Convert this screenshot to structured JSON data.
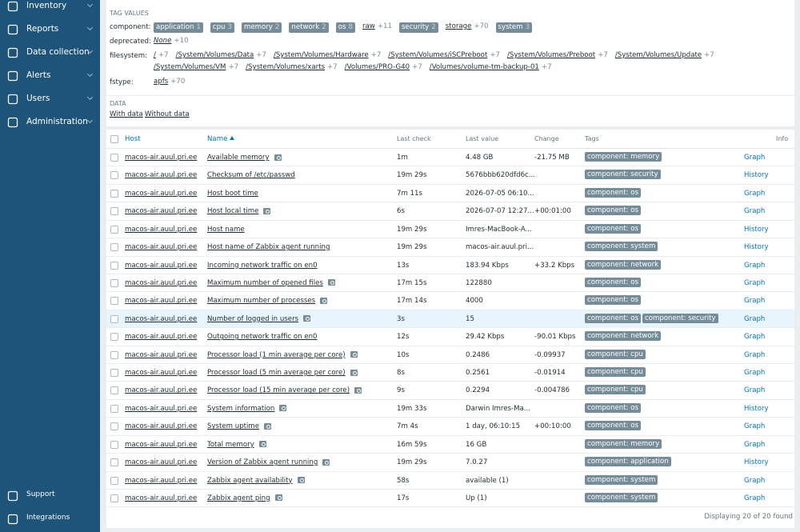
{
  "sidebar": {
    "menu": [
      "Inventory",
      "Reports",
      "Data collection",
      "Alerts",
      "Users",
      "Administration"
    ],
    "footer": [
      "Support",
      "Integrations"
    ]
  },
  "filter": {
    "tag_values_title": "TAG VALUES",
    "tags": [
      {
        "name": "component:",
        "values": [
          {
            "label": "application",
            "count": "1",
            "selected": true
          },
          {
            "label": "cpu",
            "count": "3",
            "selected": true
          },
          {
            "label": "memory",
            "count": "2",
            "selected": true
          },
          {
            "label": "network",
            "count": "2",
            "selected": true
          },
          {
            "label": "os",
            "count": "8",
            "selected": true
          },
          {
            "label": "raw",
            "count": "+11",
            "selected": false
          },
          {
            "label": "security",
            "count": "2",
            "selected": true
          },
          {
            "label": "storage",
            "count": "+70",
            "selected": false
          },
          {
            "label": "system",
            "count": "3",
            "selected": true
          }
        ]
      },
      {
        "name": "deprecated:",
        "values": [
          {
            "label": "None",
            "count": "+10",
            "selected": false,
            "italic": true
          }
        ]
      },
      {
        "name": "filesystem:",
        "values": [
          {
            "label": "/",
            "count": "+7",
            "selected": false
          },
          {
            "label": "/System/Volumes/Data",
            "count": "+7",
            "selected": false
          },
          {
            "label": "/System/Volumes/Hardware",
            "count": "+7",
            "selected": false
          },
          {
            "label": "/System/Volumes/iSCPreboot",
            "count": "+7",
            "selected": false
          },
          {
            "label": "/System/Volumes/Preboot",
            "count": "+7",
            "selected": false
          },
          {
            "label": "/System/Volumes/Update",
            "count": "+7",
            "selected": false
          },
          {
            "label": "/System/Volumes/VM",
            "count": "+7",
            "selected": false
          },
          {
            "label": "/System/Volumes/xarts",
            "count": "+7",
            "selected": false
          },
          {
            "label": "/Volumes/PRO-G40",
            "count": "+7",
            "selected": false
          },
          {
            "label": "/Volumes/volume-tm-backup-01",
            "count": "+7",
            "selected": false
          }
        ]
      },
      {
        "name": "fstype:",
        "values": [
          {
            "label": "apfs",
            "count": "+70",
            "selected": false
          }
        ]
      }
    ],
    "data_title": "DATA",
    "data_options": [
      "With data",
      "Without data"
    ]
  },
  "table": {
    "headers": [
      "Host",
      "Name",
      "Last check",
      "Last value",
      "Change",
      "Tags",
      "Info"
    ],
    "hover_row": 9,
    "rows": [
      {
        "host": "macos-air.auul.pri.ee",
        "name": "Available memory",
        "help": true,
        "last_check": "1m",
        "last_value": "4.48 GB",
        "change": "-21.75 MB",
        "tags": [
          "component: memory"
        ],
        "action": "Graph"
      },
      {
        "host": "macos-air.auul.pri.ee",
        "name": "Checksum of /etc/passwd",
        "help": false,
        "last_check": "19m 29s",
        "last_value": "5676bbb620dfd6c...",
        "tags": [
          "component: security"
        ],
        "action": "History"
      },
      {
        "host": "macos-air.auul.pri.ee",
        "name": "Host boot time",
        "help": false,
        "last_check": "7m 11s",
        "last_value": "2026-07-05 06:10...",
        "tags": [
          "component: os"
        ],
        "action": "Graph"
      },
      {
        "host": "macos-air.auul.pri.ee",
        "name": "Host local time",
        "help": true,
        "last_check": "6s",
        "last_value": "2026-07-07 12:27...",
        "change": "+00:01:00",
        "tags": [
          "component: os"
        ],
        "action": "Graph"
      },
      {
        "host": "macos-air.auul.pri.ee",
        "name": "Host name",
        "help": false,
        "last_check": "19m 29s",
        "last_value": "Imres-MacBook-A...",
        "tags": [
          "component: os"
        ],
        "action": "History"
      },
      {
        "host": "macos-air.auul.pri.ee",
        "name": "Host name of Zabbix agent running",
        "help": false,
        "last_check": "19m 29s",
        "last_value": "macos-air.auul.pri...",
        "tags": [
          "component: system"
        ],
        "action": "History"
      },
      {
        "host": "macos-air.auul.pri.ee",
        "name": "Incoming network traffic on en0",
        "help": false,
        "last_check": "13s",
        "last_value": "183.94 Kbps",
        "change": "+33.2 Kbps",
        "tags": [
          "component: network"
        ],
        "action": "Graph"
      },
      {
        "host": "macos-air.auul.pri.ee",
        "name": "Maximum number of opened files",
        "help": true,
        "last_check": "17m 15s",
        "last_value": "122880",
        "tags": [
          "component: os"
        ],
        "action": "Graph"
      },
      {
        "host": "macos-air.auul.pri.ee",
        "name": "Maximum number of processes",
        "help": true,
        "last_check": "17m 14s",
        "last_value": "4000",
        "tags": [
          "component: os"
        ],
        "action": "Graph"
      },
      {
        "host": "macos-air.auul.pri.ee",
        "name": "Number of logged in users",
        "help": true,
        "last_check": "3s",
        "last_value": "15",
        "tags": [
          "component: os",
          "component: security"
        ],
        "action": "Graph"
      },
      {
        "host": "macos-air.auul.pri.ee",
        "name": "Outgoing network traffic on en0",
        "help": false,
        "last_check": "12s",
        "last_value": "29.42 Kbps",
        "change": "-90.01 Kbps",
        "tags": [
          "component: network"
        ],
        "action": "Graph"
      },
      {
        "host": "macos-air.auul.pri.ee",
        "name": "Processor load (1 min average per core)",
        "help": true,
        "last_check": "10s",
        "last_value": "0.2486",
        "change": "-0.09937",
        "tags": [
          "component: cpu"
        ],
        "action": "Graph"
      },
      {
        "host": "macos-air.auul.pri.ee",
        "name": "Processor load (5 min average per core)",
        "help": true,
        "last_check": "8s",
        "last_value": "0.2561",
        "change": "-0.01914",
        "tags": [
          "component: cpu"
        ],
        "action": "Graph"
      },
      {
        "host": "macos-air.auul.pri.ee",
        "name": "Processor load (15 min average per core)",
        "help": true,
        "last_check": "9s",
        "last_value": "0.2294",
        "change": "-0.004786",
        "tags": [
          "component: cpu"
        ],
        "action": "Graph"
      },
      {
        "host": "macos-air.auul.pri.ee",
        "name": "System information",
        "help": true,
        "last_check": "19m 33s",
        "last_value": "Darwin Imres-Ma...",
        "tags": [
          "component: os"
        ],
        "action": "History"
      },
      {
        "host": "macos-air.auul.pri.ee",
        "name": "System uptime",
        "help": true,
        "last_check": "7m 4s",
        "last_value": "1 day, 06:10:15",
        "change": "+00:10:00",
        "tags": [
          "component: os"
        ],
        "action": "Graph"
      },
      {
        "host": "macos-air.auul.pri.ee",
        "name": "Total memory",
        "help": true,
        "last_check": "16m 59s",
        "last_value": "16 GB",
        "tags": [
          "component: memory"
        ],
        "action": "Graph"
      },
      {
        "host": "macos-air.auul.pri.ee",
        "name": "Version of Zabbix agent running",
        "help": true,
        "last_check": "19m 29s",
        "last_value": "7.0.27",
        "tags": [
          "component: application"
        ],
        "action": "History"
      },
      {
        "host": "macos-air.auul.pri.ee",
        "name": "Zabbix agent availability",
        "help": true,
        "last_check": "58s",
        "last_value": "available (1)",
        "tags": [
          "component: system"
        ],
        "action": "Graph"
      },
      {
        "host": "macos-air.auul.pri.ee",
        "name": "Zabbix agent ping",
        "help": true,
        "last_check": "17s",
        "last_value": "Up (1)",
        "tags": [
          "component: system"
        ],
        "action": "Graph"
      }
    ],
    "footer": "Displaying 20 of 20 found"
  }
}
